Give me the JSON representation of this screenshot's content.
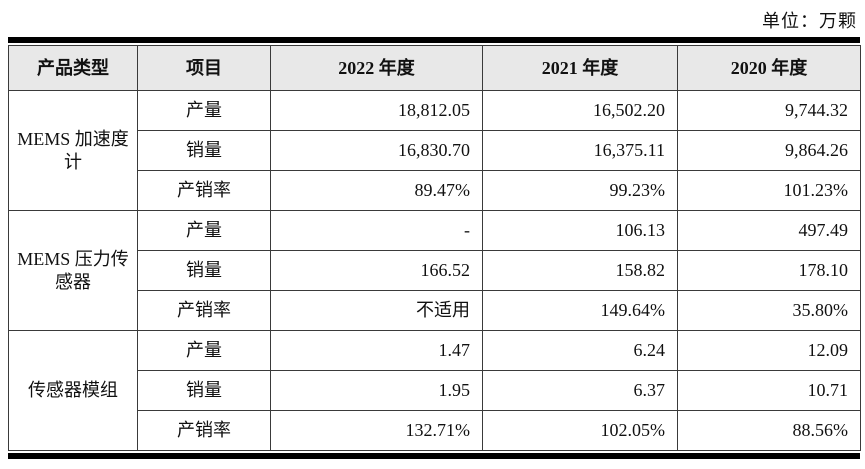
{
  "unit_label": "单位：万颗",
  "colors": {
    "header_background": "#e8e8e8",
    "border": "#3a3a3a",
    "thick_rule": "#000000",
    "text": "#111111"
  },
  "table": {
    "headers": [
      "产品类型",
      "项目",
      "2022 年度",
      "2021 年度",
      "2020 年度"
    ],
    "groups": [
      {
        "product": "MEMS 加速度计",
        "rows": [
          {
            "item": "产量",
            "y2022": "18,812.05",
            "y2021": "16,502.20",
            "y2020": "9,744.32"
          },
          {
            "item": "销量",
            "y2022": "16,830.70",
            "y2021": "16,375.11",
            "y2020": "9,864.26"
          },
          {
            "item": "产销率",
            "y2022": "89.47%",
            "y2021": "99.23%",
            "y2020": "101.23%"
          }
        ]
      },
      {
        "product": "MEMS 压力传感器",
        "rows": [
          {
            "item": "产量",
            "y2022": "-",
            "y2021": "106.13",
            "y2020": "497.49"
          },
          {
            "item": "销量",
            "y2022": "166.52",
            "y2021": "158.82",
            "y2020": "178.10"
          },
          {
            "item": "产销率",
            "y2022": "不适用",
            "y2021": "149.64%",
            "y2020": "35.80%"
          }
        ]
      },
      {
        "product": "传感器模组",
        "rows": [
          {
            "item": "产量",
            "y2022": "1.47",
            "y2021": "6.24",
            "y2020": "12.09"
          },
          {
            "item": "销量",
            "y2022": "1.95",
            "y2021": "6.37",
            "y2020": "10.71"
          },
          {
            "item": "产销率",
            "y2022": "132.71%",
            "y2021": "102.05%",
            "y2020": "88.56%"
          }
        ]
      }
    ]
  }
}
